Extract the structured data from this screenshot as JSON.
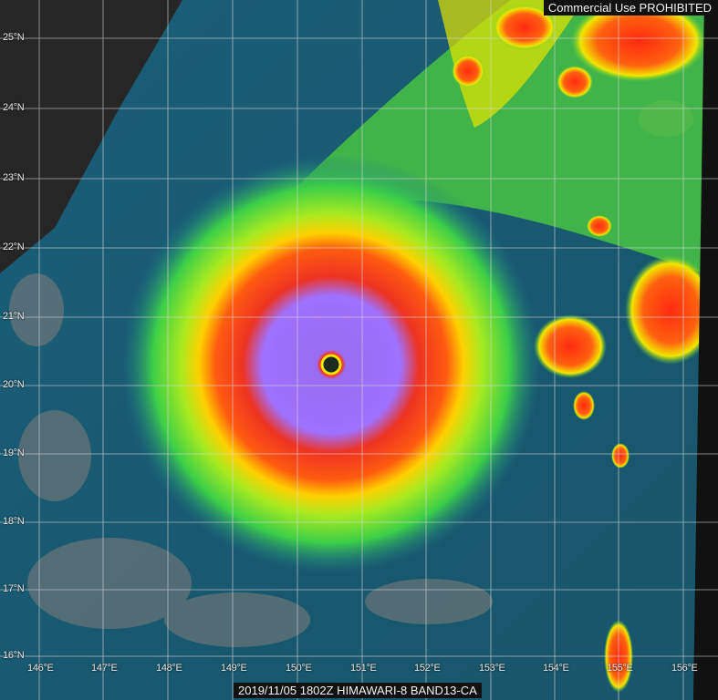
{
  "watermark": "Commercial Use PROHIBITED",
  "caption": "2019/11/05 1802Z HIMAWARI-8 BAND13-CA",
  "latitude_labels": [
    "25°N",
    "24°N",
    "23°N",
    "22°N",
    "21°N",
    "20°N",
    "19°N",
    "18°N",
    "17°N",
    "16°N"
  ],
  "longitude_labels": [
    "146°E",
    "147°E",
    "148°E",
    "149°E",
    "150°E",
    "151°E",
    "152°E",
    "153°E",
    "154°E",
    "155°E",
    "156°E"
  ],
  "colors": {
    "ocean": "#1d6e8c",
    "cold_cloud": "#9966ff",
    "red_band": "#ff2a10",
    "yellow_band": "#f2e600",
    "green_band": "#4fd13b",
    "land": "#7a7a7a"
  }
}
